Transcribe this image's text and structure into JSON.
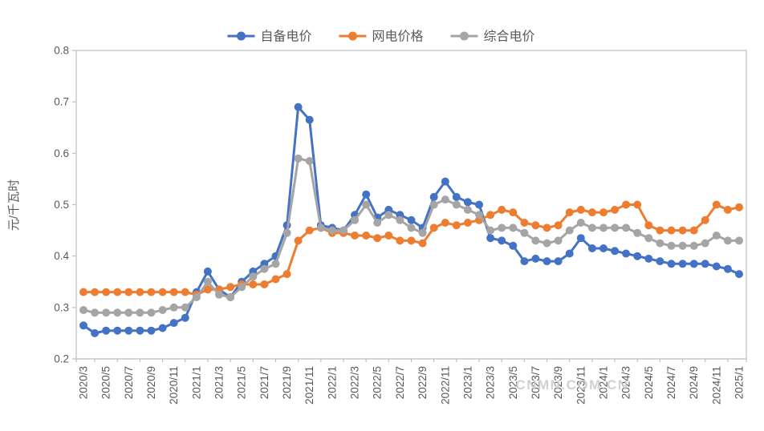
{
  "watermark": "CNMN.COM.CN",
  "colors": {
    "background": "#FFFFFF",
    "axis_line": "#BFBFBF",
    "axis_text": "#595959",
    "watermark_text": "#C9C9C9",
    "series_blue": "#4472C4",
    "series_orange": "#ED7D31",
    "series_gray": "#A5A5A5"
  },
  "chart_data": {
    "type": "line",
    "title": "",
    "xlabel": "",
    "ylabel": "元/千瓦时",
    "ylim": [
      0.2,
      0.8
    ],
    "yticks": [
      "0.2",
      "0.3",
      "0.4",
      "0.5",
      "0.6",
      "0.7",
      "0.8"
    ],
    "grid": false,
    "legend_position": "top",
    "marker": "circle",
    "x_label_every": 2,
    "x": [
      "2020/3",
      "2020/4",
      "2020/5",
      "2020/6",
      "2020/7",
      "2020/8",
      "2020/9",
      "2020/10",
      "2020/11",
      "2020/12",
      "2021/1",
      "2021/2",
      "2021/3",
      "2021/4",
      "2021/5",
      "2021/6",
      "2021/7",
      "2021/8",
      "2021/9",
      "2021/10",
      "2021/11",
      "2021/12",
      "2022/1",
      "2022/2",
      "2022/3",
      "2022/4",
      "2022/5",
      "2022/6",
      "2022/7",
      "2022/8",
      "2022/9",
      "2022/10",
      "2022/11",
      "2022/12",
      "2023/1",
      "2023/2",
      "2023/3",
      "2023/4",
      "2023/5",
      "2023/6",
      "2023/7",
      "2023/8",
      "2023/9",
      "2023/10",
      "2023/11",
      "2023/12",
      "2024/1",
      "2024/2",
      "2024/3",
      "2024/4",
      "2024/5",
      "2024/6",
      "2024/7",
      "2024/8",
      "2024/9",
      "2024/10",
      "2024/11",
      "2024/12",
      "2025/1"
    ],
    "series": [
      {
        "name": "自备电价",
        "color": "#4472C4",
        "values": [
          0.265,
          0.25,
          0.255,
          0.255,
          0.255,
          0.255,
          0.255,
          0.26,
          0.27,
          0.28,
          0.33,
          0.37,
          0.335,
          0.32,
          0.35,
          0.37,
          0.385,
          0.4,
          0.46,
          0.69,
          0.665,
          0.46,
          0.455,
          0.45,
          0.48,
          0.52,
          0.475,
          0.49,
          0.48,
          0.47,
          0.455,
          0.515,
          0.545,
          0.515,
          0.505,
          0.5,
          0.435,
          0.43,
          0.42,
          0.39,
          0.395,
          0.39,
          0.39,
          0.405,
          0.435,
          0.415,
          0.415,
          0.41,
          0.405,
          0.4,
          0.395,
          0.39,
          0.385,
          0.385,
          0.385,
          0.385,
          0.38,
          0.375,
          0.365
        ]
      },
      {
        "name": "网电价格",
        "color": "#ED7D31",
        "values": [
          0.33,
          0.33,
          0.33,
          0.33,
          0.33,
          0.33,
          0.33,
          0.33,
          0.33,
          0.33,
          0.325,
          0.335,
          0.335,
          0.34,
          0.345,
          0.345,
          0.345,
          0.355,
          0.365,
          0.43,
          0.45,
          0.455,
          0.445,
          0.445,
          0.44,
          0.44,
          0.435,
          0.44,
          0.43,
          0.43,
          0.425,
          0.455,
          0.465,
          0.46,
          0.465,
          0.47,
          0.48,
          0.49,
          0.485,
          0.465,
          0.46,
          0.455,
          0.46,
          0.485,
          0.49,
          0.485,
          0.485,
          0.49,
          0.5,
          0.5,
          0.46,
          0.45,
          0.45,
          0.45,
          0.45,
          0.47,
          0.5,
          0.49,
          0.495
        ]
      },
      {
        "name": "综合电价",
        "color": "#A5A5A5",
        "values": [
          0.295,
          0.29,
          0.29,
          0.29,
          0.29,
          0.29,
          0.29,
          0.295,
          0.3,
          0.3,
          0.32,
          0.35,
          0.325,
          0.32,
          0.34,
          0.36,
          0.375,
          0.385,
          0.445,
          0.59,
          0.585,
          0.455,
          0.45,
          0.45,
          0.47,
          0.5,
          0.465,
          0.48,
          0.47,
          0.455,
          0.445,
          0.5,
          0.51,
          0.5,
          0.49,
          0.48,
          0.45,
          0.455,
          0.455,
          0.445,
          0.43,
          0.425,
          0.43,
          0.45,
          0.465,
          0.455,
          0.455,
          0.455,
          0.455,
          0.445,
          0.435,
          0.425,
          0.42,
          0.42,
          0.42,
          0.425,
          0.44,
          0.43,
          0.43
        ]
      }
    ]
  }
}
